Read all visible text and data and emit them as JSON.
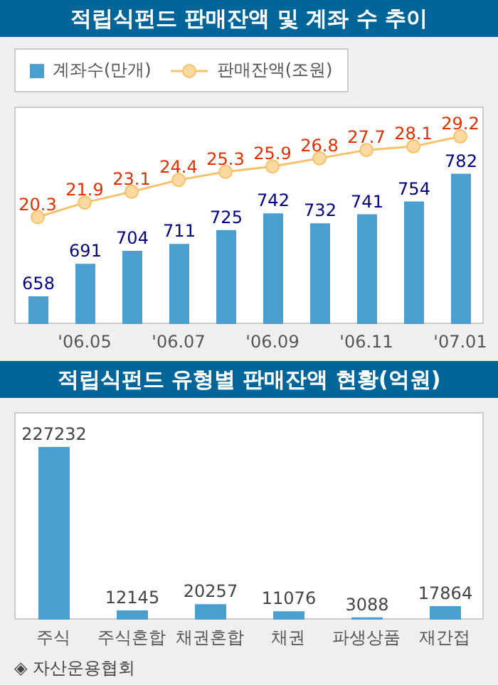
{
  "chart_data": [
    {
      "type": "bar",
      "title": "적립식펀드 판매잔액 및 계좌 수 추이",
      "categories": [
        null,
        "'06.05",
        null,
        "'06.07",
        null,
        "'06.09",
        null,
        "'06.11",
        null,
        "'07.01"
      ],
      "legend": "top left",
      "data_labels": true,
      "ylim": [
        630,
        850
      ],
      "y2lim": [
        8.5,
        32.5
      ],
      "tick_labels": "x",
      "marker": "circle",
      "series": [
        {
          "name": "계좌수(만개)",
          "color": "#4a9fd0",
          "values": [
            658,
            691,
            704,
            711,
            725,
            742,
            732,
            741,
            754,
            782
          ]
        },
        {
          "name": "판매잔액(조원)",
          "type": "line",
          "axis": "y2",
          "color": "#f5c26b",
          "values": [
            20.3,
            21.9,
            23.1,
            24.4,
            25.3,
            25.9,
            26.8,
            27.7,
            28.1,
            29.2
          ]
        }
      ]
    },
    {
      "type": "bar",
      "title": "적립식펀드 유형별 판매잔액 현황(억원)",
      "categories": [
        "주식",
        "주식혼합",
        "채권혼합",
        "채권",
        "파생상품",
        "재간접"
      ],
      "color": "#4a9fd0",
      "values": [
        227232,
        12145,
        20257,
        11076,
        3088,
        17864
      ],
      "data_labels": true,
      "ylim": [
        0,
        273000
      ],
      "tick_labels": "x",
      "annotations": [
        "◈ 자산운용협회"
      ]
    }
  ]
}
